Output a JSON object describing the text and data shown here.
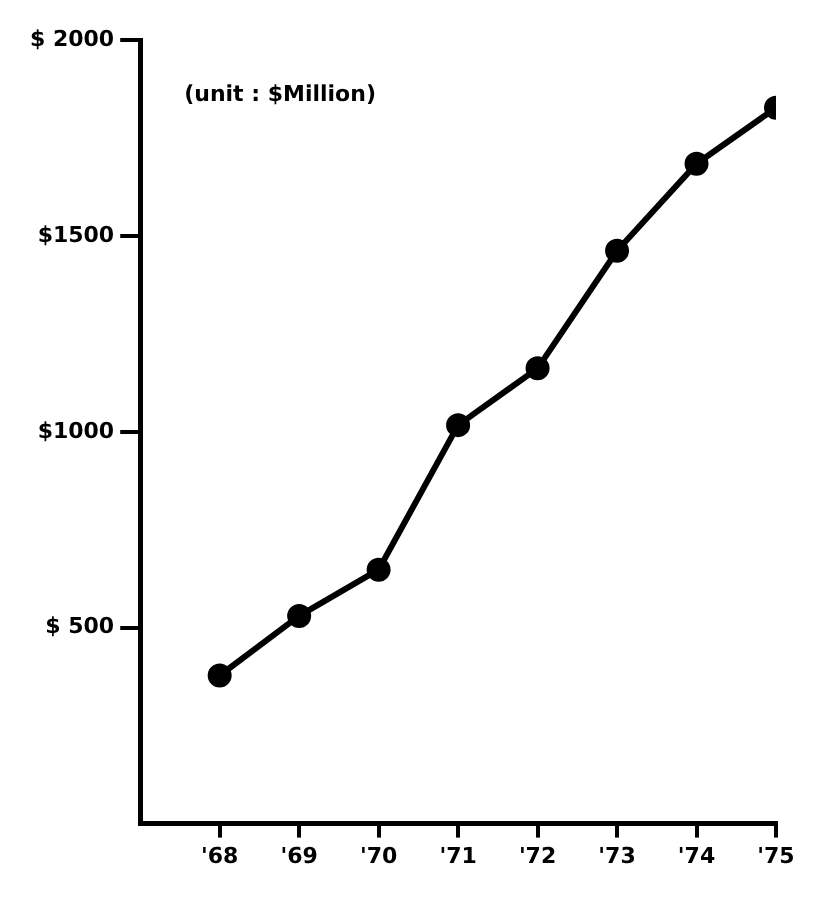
{
  "chart_data": {
    "type": "line",
    "categories": [
      "'68",
      "'69",
      "'70",
      "'71",
      "'72",
      "'73",
      "'74",
      "'75"
    ],
    "series": [
      {
        "color": "#000000",
        "values": [
          378,
          530,
          648,
          1017,
          1162,
          1462,
          1684,
          1827
        ]
      }
    ],
    "ylim": [
      0,
      2000
    ],
    "yticks": [
      {
        "value": 500,
        "label": "$ 500"
      },
      {
        "value": 1000,
        "label": "$1000"
      },
      {
        "value": 1500,
        "label": "$1500"
      },
      {
        "value": 2000,
        "label": "$ 2000"
      }
    ],
    "annotations": [
      "(unit : $Million)"
    ],
    "grid": false,
    "legend": false,
    "marker": "circle",
    "line_style": "solid"
  }
}
